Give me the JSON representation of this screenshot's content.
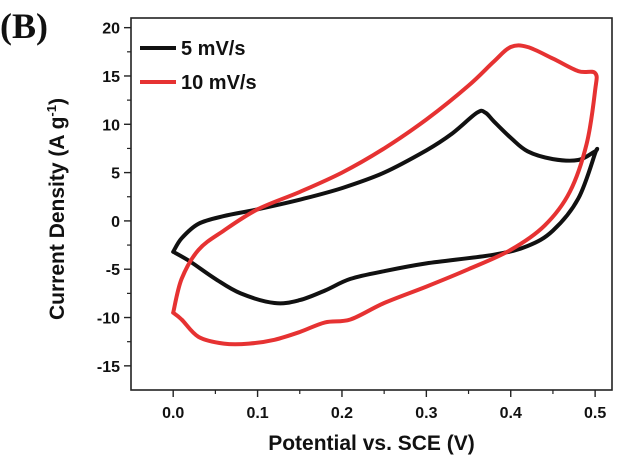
{
  "panel_label": "(B)",
  "chart_data": {
    "type": "line",
    "xlabel": "Potential vs. SCE (V)",
    "ylabel_main": "Current Density (A g",
    "ylabel_sup": "-1",
    "ylabel_close": ")",
    "xlim": [
      -0.05,
      0.52
    ],
    "ylim": [
      -17.5,
      21
    ],
    "x_ticks": [
      0.0,
      0.1,
      0.2,
      0.3,
      0.4,
      0.5
    ],
    "x_tick_labels": [
      "0.0",
      "0.1",
      "0.2",
      "0.3",
      "0.4",
      "0.5"
    ],
    "y_ticks": [
      -15,
      -10,
      -5,
      0,
      5,
      10,
      15,
      20
    ],
    "y_tick_labels": [
      "-15",
      "-10",
      "-5",
      "0",
      "5",
      "10",
      "15",
      "20"
    ],
    "grid": false,
    "legend_position": "top-left",
    "series": [
      {
        "name": "5 mV/s",
        "color": "#111111",
        "x": [
          0.0,
          0.01,
          0.03,
          0.06,
          0.1,
          0.15,
          0.2,
          0.25,
          0.3,
          0.33,
          0.36,
          0.37,
          0.38,
          0.4,
          0.42,
          0.45,
          0.48,
          0.5,
          0.5,
          0.48,
          0.45,
          0.42,
          0.38,
          0.3,
          0.25,
          0.21,
          0.18,
          0.15,
          0.12,
          0.08,
          0.05,
          0.02,
          0.0
        ],
        "y": [
          -3.2,
          -1.8,
          -0.3,
          0.5,
          1.2,
          2.2,
          3.4,
          5.0,
          7.3,
          9.0,
          11.2,
          11.2,
          10.3,
          8.6,
          7.2,
          6.4,
          6.3,
          7.2,
          7.0,
          2.3,
          -1.0,
          -2.6,
          -3.5,
          -4.4,
          -5.2,
          -6.0,
          -7.2,
          -8.2,
          -8.5,
          -7.5,
          -6.0,
          -4.2,
          -3.2
        ]
      },
      {
        "name": "10 mV/s",
        "color": "#e63232",
        "x": [
          0.0,
          0.01,
          0.03,
          0.06,
          0.1,
          0.15,
          0.2,
          0.25,
          0.3,
          0.35,
          0.38,
          0.4,
          0.42,
          0.45,
          0.48,
          0.5,
          0.5,
          0.49,
          0.47,
          0.44,
          0.4,
          0.35,
          0.3,
          0.25,
          0.21,
          0.18,
          0.15,
          0.12,
          0.09,
          0.06,
          0.03,
          0.01,
          0.0
        ],
        "y": [
          -9.5,
          -6.0,
          -3.0,
          -1.0,
          1.2,
          3.0,
          5.0,
          7.5,
          10.5,
          14.0,
          16.5,
          18.0,
          18.0,
          16.8,
          15.5,
          15.3,
          13.5,
          8.0,
          3.0,
          -0.5,
          -3.0,
          -5.0,
          -6.8,
          -8.5,
          -10.2,
          -10.5,
          -11.5,
          -12.3,
          -12.7,
          -12.7,
          -12.0,
          -10.2,
          -9.5
        ]
      }
    ]
  }
}
